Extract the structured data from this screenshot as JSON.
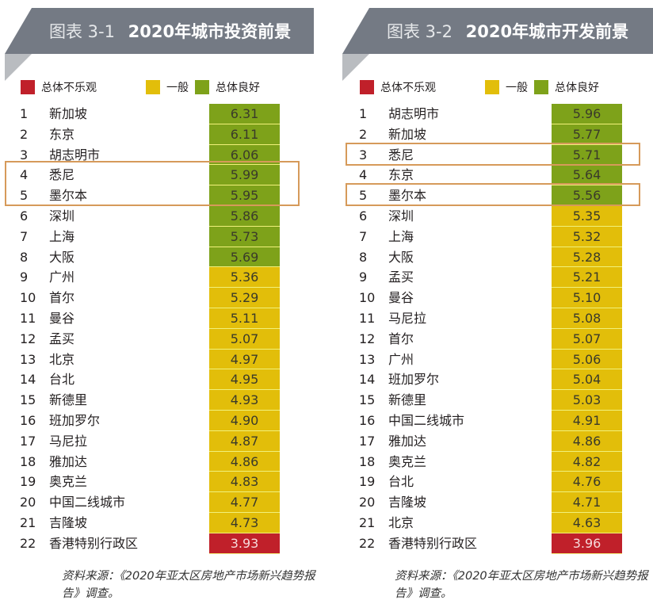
{
  "legend": {
    "red": {
      "label": "总体不乐观",
      "color": "#c0202a"
    },
    "yellow": {
      "label": "一般",
      "color": "#e2be0a"
    },
    "green": {
      "label": "总体良好",
      "color": "#7ea21a"
    }
  },
  "highlight_color": "#d69a5a",
  "panels": [
    {
      "figure_label": "图表 3-1",
      "title": "2020年城市投资前景",
      "source": "资料来源：《2020年亚太区房地产市场新兴趋势报告》调查。",
      "highlighted_ranks": [
        4,
        5
      ],
      "rows": [
        {
          "rank": "1",
          "city": "新加坡",
          "value": "6.31",
          "status": "green"
        },
        {
          "rank": "2",
          "city": "东京",
          "value": "6.11",
          "status": "green"
        },
        {
          "rank": "3",
          "city": "胡志明市",
          "value": "6.06",
          "status": "green"
        },
        {
          "rank": "4",
          "city": "悉尼",
          "value": "5.99",
          "status": "green"
        },
        {
          "rank": "5",
          "city": "墨尔本",
          "value": "5.95",
          "status": "green"
        },
        {
          "rank": "6",
          "city": "深圳",
          "value": "5.86",
          "status": "green"
        },
        {
          "rank": "7",
          "city": "上海",
          "value": "5.73",
          "status": "green"
        },
        {
          "rank": "8",
          "city": "大阪",
          "value": "5.69",
          "status": "green"
        },
        {
          "rank": "9",
          "city": "广州",
          "value": "5.36",
          "status": "yellow"
        },
        {
          "rank": "10",
          "city": "首尔",
          "value": "5.29",
          "status": "yellow"
        },
        {
          "rank": "11",
          "city": "曼谷",
          "value": "5.11",
          "status": "yellow"
        },
        {
          "rank": "12",
          "city": "孟买",
          "value": "5.07",
          "status": "yellow"
        },
        {
          "rank": "13",
          "city": "北京",
          "value": "4.97",
          "status": "yellow"
        },
        {
          "rank": "14",
          "city": "台北",
          "value": "4.95",
          "status": "yellow"
        },
        {
          "rank": "15",
          "city": "新德里",
          "value": "4.93",
          "status": "yellow"
        },
        {
          "rank": "16",
          "city": "班加罗尔",
          "value": "4.90",
          "status": "yellow"
        },
        {
          "rank": "17",
          "city": "马尼拉",
          "value": "4.87",
          "status": "yellow"
        },
        {
          "rank": "18",
          "city": "雅加达",
          "value": "4.86",
          "status": "yellow"
        },
        {
          "rank": "19",
          "city": "奥克兰",
          "value": "4.83",
          "status": "yellow"
        },
        {
          "rank": "20",
          "city": "中国二线城市",
          "value": "4.77",
          "status": "yellow"
        },
        {
          "rank": "21",
          "city": "吉隆坡",
          "value": "4.73",
          "status": "yellow"
        },
        {
          "rank": "22",
          "city": "香港特别行政区",
          "value": "3.93",
          "status": "red"
        }
      ]
    },
    {
      "figure_label": "图表 3-2",
      "title": "2020年城市开发前景",
      "source": "资料来源：《2020年亚太区房地产市场新兴趋势报告》调查。",
      "highlighted_ranks": [
        3,
        5
      ],
      "rows": [
        {
          "rank": "1",
          "city": "胡志明市",
          "value": "5.96",
          "status": "green"
        },
        {
          "rank": "2",
          "city": "新加坡",
          "value": "5.77",
          "status": "green"
        },
        {
          "rank": "3",
          "city": "悉尼",
          "value": "5.71",
          "status": "green"
        },
        {
          "rank": "4",
          "city": "东京",
          "value": "5.64",
          "status": "green"
        },
        {
          "rank": "5",
          "city": "墨尔本",
          "value": "5.56",
          "status": "green"
        },
        {
          "rank": "6",
          "city": "深圳",
          "value": "5.35",
          "status": "yellow"
        },
        {
          "rank": "7",
          "city": "上海",
          "value": "5.32",
          "status": "yellow"
        },
        {
          "rank": "8",
          "city": "大阪",
          "value": "5.28",
          "status": "yellow"
        },
        {
          "rank": "9",
          "city": "孟买",
          "value": "5.21",
          "status": "yellow"
        },
        {
          "rank": "10",
          "city": "曼谷",
          "value": "5.10",
          "status": "yellow"
        },
        {
          "rank": "11",
          "city": "马尼拉",
          "value": "5.08",
          "status": "yellow"
        },
        {
          "rank": "12",
          "city": "首尔",
          "value": "5.07",
          "status": "yellow"
        },
        {
          "rank": "13",
          "city": "广州",
          "value": "5.06",
          "status": "yellow"
        },
        {
          "rank": "14",
          "city": "班加罗尔",
          "value": "5.04",
          "status": "yellow"
        },
        {
          "rank": "15",
          "city": "新德里",
          "value": "5.03",
          "status": "yellow"
        },
        {
          "rank": "16",
          "city": "中国二线城市",
          "value": "4.91",
          "status": "yellow"
        },
        {
          "rank": "17",
          "city": "雅加达",
          "value": "4.86",
          "status": "yellow"
        },
        {
          "rank": "18",
          "city": "奥克兰",
          "value": "4.82",
          "status": "yellow"
        },
        {
          "rank": "19",
          "city": "台北",
          "value": "4.76",
          "status": "yellow"
        },
        {
          "rank": "20",
          "city": "吉隆坡",
          "value": "4.71",
          "status": "yellow"
        },
        {
          "rank": "21",
          "city": "北京",
          "value": "4.63",
          "status": "yellow"
        },
        {
          "rank": "22",
          "city": "香港特别行政区",
          "value": "3.96",
          "status": "red"
        }
      ]
    }
  ],
  "chart_data": [
    {
      "type": "table",
      "title": "图表 3-1 2020年城市投资前景",
      "legend": [
        "总体不乐观",
        "一般",
        "总体良好"
      ],
      "categories": [
        "新加坡",
        "东京",
        "胡志明市",
        "悉尼",
        "墨尔本",
        "深圳",
        "上海",
        "大阪",
        "广州",
        "首尔",
        "曼谷",
        "孟买",
        "北京",
        "台北",
        "新德里",
        "班加罗尔",
        "马尼拉",
        "雅加达",
        "奥克兰",
        "中国二线城市",
        "吉隆坡",
        "香港特别行政区"
      ],
      "values": [
        6.31,
        6.11,
        6.06,
        5.99,
        5.95,
        5.86,
        5.73,
        5.69,
        5.36,
        5.29,
        5.11,
        5.07,
        4.97,
        4.95,
        4.93,
        4.9,
        4.87,
        4.86,
        4.83,
        4.77,
        4.73,
        3.93
      ],
      "status": [
        "总体良好",
        "总体良好",
        "总体良好",
        "总体良好",
        "总体良好",
        "总体良好",
        "总体良好",
        "总体良好",
        "一般",
        "一般",
        "一般",
        "一般",
        "一般",
        "一般",
        "一般",
        "一般",
        "一般",
        "一般",
        "一般",
        "一般",
        "一般",
        "总体不乐观"
      ],
      "annotations": [
        "悉尼、墨尔本（第4-5名）以橙色框标出"
      ],
      "source": "资料来源：《2020年亚太区房地产市场新兴趋势报告》调查。"
    },
    {
      "type": "table",
      "title": "图表 3-2 2020年城市开发前景",
      "legend": [
        "总体不乐观",
        "一般",
        "总体良好"
      ],
      "categories": [
        "胡志明市",
        "新加坡",
        "悉尼",
        "东京",
        "墨尔本",
        "深圳",
        "上海",
        "大阪",
        "孟买",
        "曼谷",
        "马尼拉",
        "首尔",
        "广州",
        "班加罗尔",
        "新德里",
        "中国二线城市",
        "雅加达",
        "奥克兰",
        "台北",
        "吉隆坡",
        "北京",
        "香港特别行政区"
      ],
      "values": [
        5.96,
        5.77,
        5.71,
        5.64,
        5.56,
        5.35,
        5.32,
        5.28,
        5.21,
        5.1,
        5.08,
        5.07,
        5.06,
        5.04,
        5.03,
        4.91,
        4.86,
        4.82,
        4.76,
        4.71,
        4.63,
        3.96
      ],
      "status": [
        "总体良好",
        "总体良好",
        "总体良好",
        "总体良好",
        "总体良好",
        "一般",
        "一般",
        "一般",
        "一般",
        "一般",
        "一般",
        "一般",
        "一般",
        "一般",
        "一般",
        "一般",
        "一般",
        "一般",
        "一般",
        "一般",
        "一般",
        "总体不乐观"
      ],
      "annotations": [
        "悉尼（第3名）、墨尔本（第5名）以橙色框标出"
      ],
      "source": "资料来源：《2020年亚太区房地产市场新兴趋势报告》调查。"
    }
  ]
}
